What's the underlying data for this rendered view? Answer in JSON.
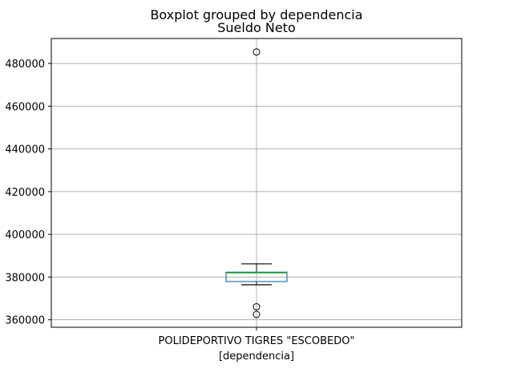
{
  "chart_data": {
    "type": "boxplot",
    "suptitle": "Boxplot grouped by dependencia",
    "title": "Sueldo Neto",
    "xlabel": "[dependencia]",
    "ylabel": "",
    "categories": [
      "POLIDEPORTIVO TIGRES \"ESCOBEDO\""
    ],
    "yticks": [
      360000,
      380000,
      400000,
      420000,
      440000,
      460000,
      480000
    ],
    "ylim": [
      356500,
      491700
    ],
    "grid": true,
    "boxes": [
      {
        "category": "POLIDEPORTIVO TIGRES \"ESCOBEDO\"",
        "whisker_low": 376400,
        "q1": 377900,
        "median": 382000,
        "q3": 382300,
        "whisker_high": 386200,
        "outliers": [
          485400,
          366100,
          362500
        ]
      }
    ],
    "colors": {
      "box": "#1f77b4",
      "median": "#2ca02c",
      "whisker": "#000000",
      "grid": "#b0b0b0"
    }
  }
}
